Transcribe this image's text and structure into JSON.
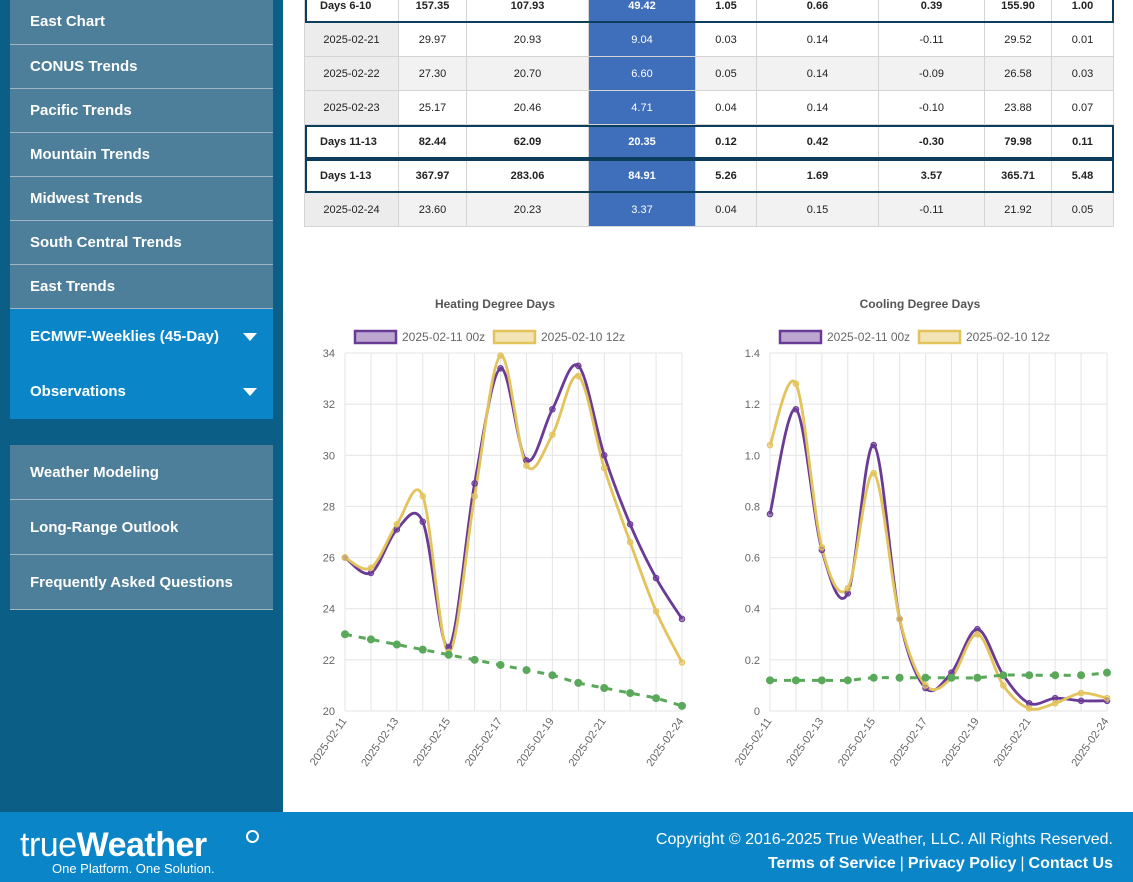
{
  "sidebar": {
    "top_items": [
      "East Chart",
      "CONUS Trends",
      "Pacific Trends",
      "Mountain Trends",
      "Midwest Trends",
      "South Central Trends",
      "East Trends"
    ],
    "expandable_items": [
      "ECMWF-Weeklies (45-Day)",
      "Observations"
    ],
    "bottom_items": [
      "Weather Modeling",
      "Long-Range Outlook",
      "Frequently Asked Questions"
    ]
  },
  "table": {
    "rows": [
      {
        "type": "sum",
        "cells": [
          "Days 6-10",
          "157.35",
          "107.93",
          "49.42",
          "1.05",
          "0.66",
          "0.39",
          "155.90",
          "1.00"
        ]
      },
      {
        "type": "row",
        "cells": [
          "2025-02-21",
          "29.97",
          "20.93",
          "9.04",
          "0.03",
          "0.14",
          "-0.11",
          "29.52",
          "0.01"
        ]
      },
      {
        "type": "row alt",
        "cells": [
          "2025-02-22",
          "27.30",
          "20.70",
          "6.60",
          "0.05",
          "0.14",
          "-0.09",
          "26.58",
          "0.03"
        ]
      },
      {
        "type": "row",
        "cells": [
          "2025-02-23",
          "25.17",
          "20.46",
          "4.71",
          "0.04",
          "0.14",
          "-0.10",
          "23.88",
          "0.07"
        ]
      },
      {
        "type": "sum",
        "cells": [
          "Days 11-13",
          "82.44",
          "62.09",
          "20.35",
          "0.12",
          "0.42",
          "-0.30",
          "79.98",
          "0.11"
        ]
      },
      {
        "type": "sum",
        "cells": [
          "Days 1-13",
          "367.97",
          "283.06",
          "84.91",
          "5.26",
          "1.69",
          "3.57",
          "365.71",
          "5.48"
        ]
      },
      {
        "type": "row alt",
        "cells": [
          "2025-02-24",
          "23.60",
          "20.23",
          "3.37",
          "0.04",
          "0.15",
          "-0.11",
          "21.92",
          "0.05"
        ]
      }
    ]
  },
  "chart_data": [
    {
      "type": "line",
      "title": "Heating Degree Days",
      "x": [
        "2025-02-11",
        "2025-02-12",
        "2025-02-13",
        "2025-02-14",
        "2025-02-15",
        "2025-02-16",
        "2025-02-17",
        "2025-02-18",
        "2025-02-19",
        "2025-02-20",
        "2025-02-21",
        "2025-02-22",
        "2025-02-23",
        "2025-02-24"
      ],
      "x_tick_labels": [
        "2025-02-11",
        "2025-02-13",
        "2025-02-15",
        "2025-02-17",
        "2025-02-19",
        "2025-02-21",
        "2025-02-24"
      ],
      "ylim": [
        20,
        34
      ],
      "yticks": [
        20,
        22,
        24,
        26,
        28,
        30,
        32,
        34
      ],
      "legend_placement": "top",
      "series": [
        {
          "name": "2025-02-11 00z",
          "color": "#6a3b96",
          "values": [
            26.0,
            25.4,
            27.1,
            27.4,
            22.5,
            28.9,
            33.4,
            29.8,
            31.8,
            33.5,
            30.0,
            27.3,
            25.2,
            23.6
          ]
        },
        {
          "name": "2025-02-10 12z",
          "color": "#e3c35c",
          "values": [
            26.0,
            25.6,
            27.3,
            28.4,
            22.3,
            28.4,
            33.9,
            29.6,
            30.8,
            33.1,
            29.5,
            26.6,
            23.9,
            21.9
          ]
        },
        {
          "name": "",
          "color": "#5aa85a",
          "dashed": true,
          "values": [
            23.0,
            22.8,
            22.6,
            22.4,
            22.2,
            22.0,
            21.8,
            21.6,
            21.4,
            21.1,
            20.9,
            20.7,
            20.5,
            20.2
          ]
        }
      ]
    },
    {
      "type": "line",
      "title": "Cooling Degree Days",
      "x": [
        "2025-02-11",
        "2025-02-12",
        "2025-02-13",
        "2025-02-14",
        "2025-02-15",
        "2025-02-16",
        "2025-02-17",
        "2025-02-18",
        "2025-02-19",
        "2025-02-20",
        "2025-02-21",
        "2025-02-22",
        "2025-02-23",
        "2025-02-24"
      ],
      "x_tick_labels": [
        "2025-02-11",
        "2025-02-13",
        "2025-02-15",
        "2025-02-17",
        "2025-02-19",
        "2025-02-21",
        "2025-02-24"
      ],
      "ylim": [
        0,
        1.4
      ],
      "yticks": [
        "0",
        "0.2",
        "0.4",
        "0.6",
        "0.8",
        "1.0",
        "1.2",
        "1.4"
      ],
      "legend_placement": "top",
      "series": [
        {
          "name": "2025-02-11 00z",
          "color": "#6a3b96",
          "values": [
            0.77,
            1.18,
            0.63,
            0.46,
            1.04,
            0.36,
            0.09,
            0.15,
            0.32,
            0.14,
            0.03,
            0.05,
            0.04,
            0.04
          ]
        },
        {
          "name": "2025-02-10 12z",
          "color": "#e3c35c",
          "values": [
            1.04,
            1.28,
            0.64,
            0.48,
            0.93,
            0.36,
            0.1,
            0.13,
            0.3,
            0.1,
            0.01,
            0.03,
            0.07,
            0.05
          ]
        },
        {
          "name": "",
          "color": "#5aa85a",
          "dashed": true,
          "values": [
            0.12,
            0.12,
            0.12,
            0.12,
            0.13,
            0.13,
            0.13,
            0.13,
            0.13,
            0.14,
            0.14,
            0.14,
            0.14,
            0.15
          ]
        }
      ]
    }
  ],
  "footer": {
    "logo_light": "true",
    "logo_bold": "Weather",
    "tagline": "One Platform. One Solution.",
    "copyright": "Copyright © 2016-2025 True Weather, LLC. All Rights Reserved.",
    "links": [
      "Terms of Service",
      "Privacy Policy",
      "Contact Us"
    ],
    "separator": "|"
  }
}
